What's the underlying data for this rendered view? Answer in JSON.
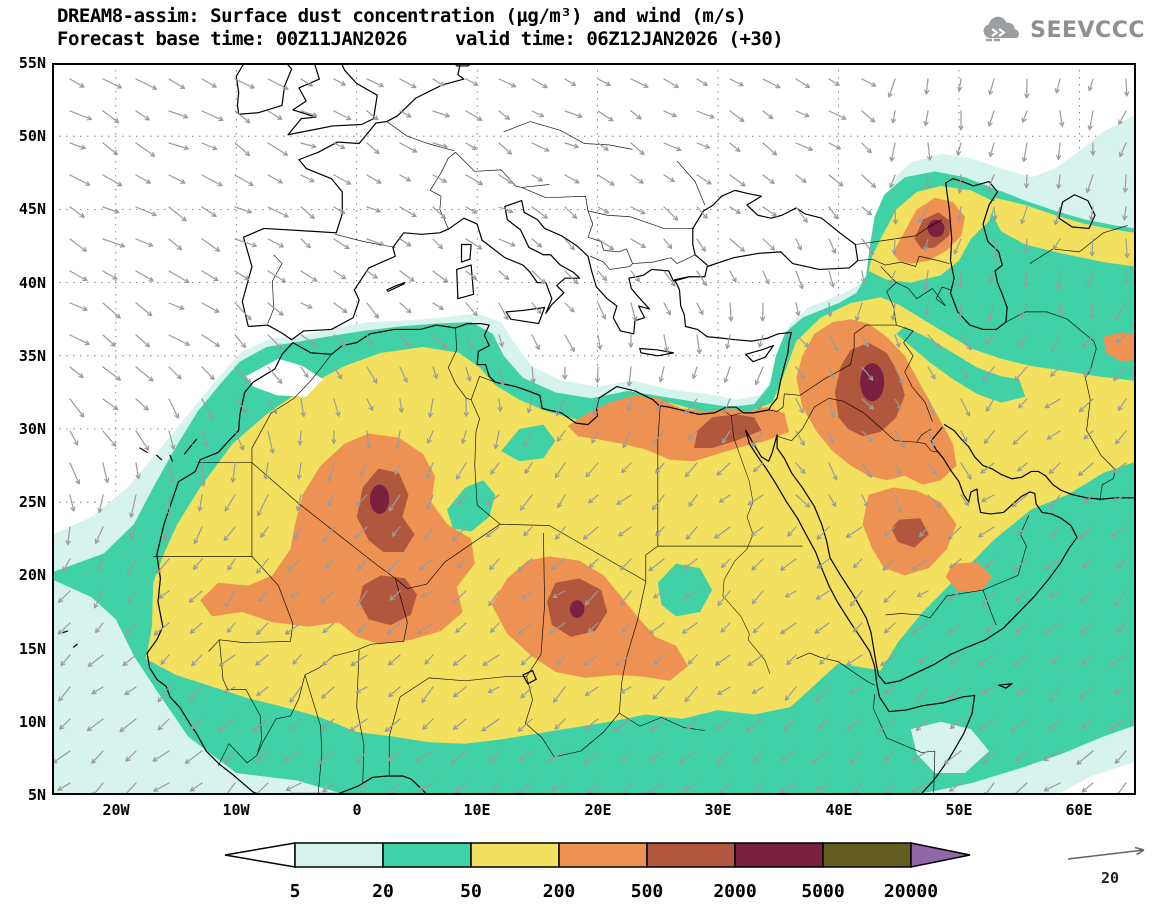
{
  "header": {
    "title": "DREAM8-assim: Surface dust concentration (µg/m³) and wind (m/s)",
    "base_time": "Forecast base time: 00Z11JAN2026",
    "valid_time": "valid time: 06Z12JAN2026 (+30)"
  },
  "logo": {
    "text": "SEEVCCC"
  },
  "axes": {
    "lat": [
      "55N",
      "50N",
      "45N",
      "40N",
      "35N",
      "30N",
      "25N",
      "20N",
      "15N",
      "10N",
      "5N"
    ],
    "lon": [
      "20W",
      "10W",
      "0",
      "10E",
      "20E",
      "30E",
      "40E",
      "50E",
      "60E"
    ]
  },
  "legend": {
    "values": [
      "5",
      "20",
      "50",
      "200",
      "500",
      "2000",
      "5000",
      "20000"
    ],
    "colors": [
      "#ffffff",
      "#d7f3ee",
      "#41d1a7",
      "#f2e05e",
      "#ee9254",
      "#b1573d",
      "#7b2140",
      "#605d1f",
      "#9166a9"
    ]
  },
  "wind_reference": {
    "value": "20"
  }
}
